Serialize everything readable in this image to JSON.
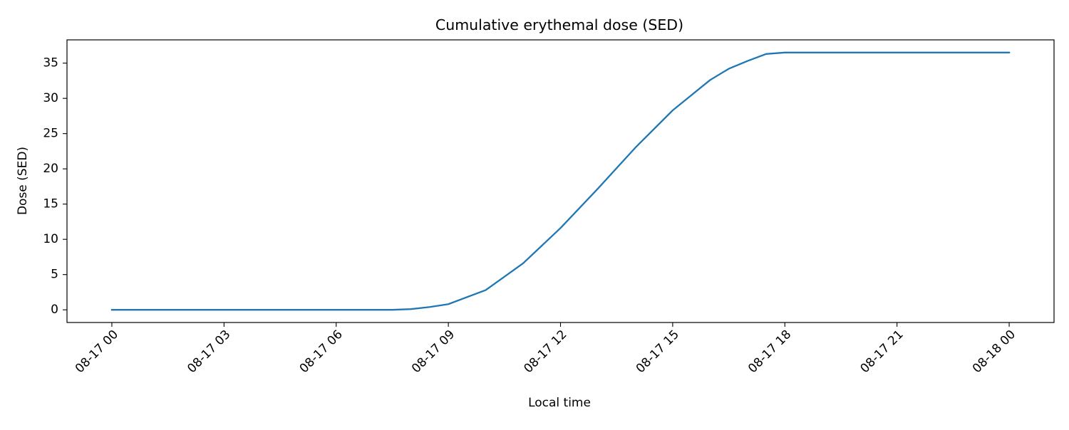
{
  "chart_data": {
    "type": "line",
    "title": "Cumulative erythemal dose (SED)",
    "xlabel": "Local time",
    "ylabel": "Dose (SED)",
    "x_axis_kind": "datetime",
    "x_tick_labels": [
      "08-17 00",
      "08-17 03",
      "08-17 06",
      "08-17 09",
      "08-17 12",
      "08-17 15",
      "08-17 18",
      "08-17 21",
      "08-18 00"
    ],
    "x_tick_hours": [
      0,
      3,
      6,
      9,
      12,
      15,
      18,
      21,
      24
    ],
    "xlim_hours": [
      -1.2,
      25.2
    ],
    "y_ticks": [
      0,
      5,
      10,
      15,
      20,
      25,
      30,
      35
    ],
    "ylim": [
      -1.8,
      38.3
    ],
    "grid": false,
    "legend": "none",
    "x_tick_label_rotation_deg": 45,
    "series": [
      {
        "color": "#1f77b4",
        "x": [
          "08-17 00:00",
          "08-17 01:00",
          "08-17 02:00",
          "08-17 03:00",
          "08-17 04:00",
          "08-17 05:00",
          "08-17 06:00",
          "08-17 07:00",
          "08-17 07:30",
          "08-17 08:00",
          "08-17 08:30",
          "08-17 09:00",
          "08-17 10:00",
          "08-17 11:00",
          "08-17 12:00",
          "08-17 13:00",
          "08-17 14:00",
          "08-17 15:00",
          "08-17 16:00",
          "08-17 16:30",
          "08-17 17:00",
          "08-17 17:30",
          "08-17 18:00",
          "08-17 19:00",
          "08-17 20:00",
          "08-17 21:00",
          "08-17 22:00",
          "08-17 23:00",
          "08-18 00:00"
        ],
        "y": [
          0,
          0,
          0,
          0,
          0,
          0,
          0,
          0,
          0,
          0.1,
          0.4,
          0.8,
          2.8,
          6.6,
          11.6,
          17.2,
          23.0,
          28.3,
          32.6,
          34.2,
          35.3,
          36.3,
          36.5,
          36.5,
          36.5,
          36.5,
          36.5,
          36.5,
          36.5
        ]
      }
    ]
  }
}
